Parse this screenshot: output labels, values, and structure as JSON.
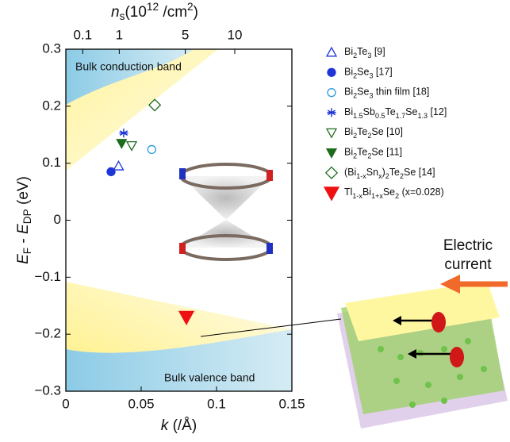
{
  "chart_data": {
    "type": "scatter",
    "xlabel": "k (/Å)",
    "ylabel": "EF - EDP (eV)",
    "x2label": "ns(1012 /cm2)",
    "xlim": [
      0,
      0.15
    ],
    "xticks": [
      0,
      0.05,
      0.1,
      0.15
    ],
    "ylim": [
      -0.3,
      0.3
    ],
    "yticks": [
      0.3,
      0.2,
      0.1,
      0,
      {
        "value": -0.1,
        "label": "−0.1"
      },
      {
        "value": -0.2,
        "label": "−0.2"
      },
      {
        "value": -0.3,
        "label": "−0.3"
      }
    ],
    "x2ticks": [
      0.1,
      1,
      5,
      10
    ],
    "series": [
      {
        "name": "Bi2Te3 [9]",
        "color": "#1f35d8",
        "marker": "triangle-open",
        "x": [
          0.035
        ],
        "values": [
          0.095
        ]
      },
      {
        "name": "Bi2Se3 [17]",
        "color": "#1f35d8",
        "marker": "circle",
        "x": [
          0.03
        ],
        "values": [
          0.085
        ]
      },
      {
        "name": "Bi2Se3 thin film [18]",
        "color": "#2a9ad8",
        "marker": "circle-open",
        "x": [
          0.057
        ],
        "values": [
          0.124
        ]
      },
      {
        "name": "Bi1.5Sb0.5Te1.7Se1.3 [12]",
        "color": "#1f35d8",
        "marker": "asterisk",
        "x": [
          0.0384
        ],
        "values": [
          0.153
        ]
      },
      {
        "name": "Bi2Te2Se [10]",
        "color": "#1d6b1d",
        "marker": "down-open",
        "x": [
          0.0437
        ],
        "values": [
          0.131
        ]
      },
      {
        "name": "Bi2Te2Se [11]",
        "color": "#1d6b1d",
        "marker": "down",
        "x": [
          0.037
        ],
        "values": [
          0.135
        ]
      },
      {
        "name": "(Bi1-xSnx)2Te2Se [14]",
        "color": "#1d6b1d",
        "marker": "diamond-open",
        "x": [
          0.059
        ],
        "values": [
          0.202
        ]
      },
      {
        "name": "Tl1-xBi1+xSe2 (x=0.028)",
        "color": "#ee1111",
        "marker": "down-big",
        "x": [
          0.08
        ],
        "values": [
          -0.17
        ]
      }
    ],
    "annotations": [
      "Bulk conduction band",
      "Bulk valence band"
    ]
  },
  "figure": {
    "labels": [
      "Electric",
      "current"
    ]
  }
}
